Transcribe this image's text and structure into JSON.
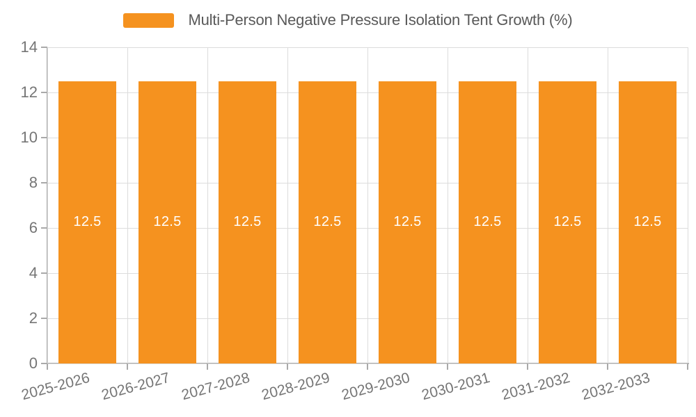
{
  "chart_data": {
    "type": "bar",
    "title": "Multi-Person Negative Pressure Isolation Tent Growth (%)",
    "categories": [
      "2025-2026",
      "2026-2027",
      "2027-2028",
      "2028-2029",
      "2029-2030",
      "2030-2031",
      "2031-2032",
      "2032-2033"
    ],
    "values": [
      12.5,
      12.5,
      12.5,
      12.5,
      12.5,
      12.5,
      12.5,
      12.5
    ],
    "bar_labels": [
      "12.5",
      "12.5",
      "12.5",
      "12.5",
      "12.5",
      "12.5",
      "12.5",
      "12.5"
    ],
    "xlabel": "",
    "ylabel": "",
    "ylim": [
      0,
      14
    ],
    "yticks": [
      0,
      2,
      4,
      6,
      8,
      10,
      12,
      14
    ],
    "ytick_labels": [
      "0",
      "2",
      "4",
      "6",
      "8",
      "10",
      "12",
      "14"
    ],
    "grid": true,
    "legend_position": "top-center",
    "x_label_rotation_deg": -15,
    "colors": {
      "bar": "#F5921F",
      "bar_label": "#FFFFFF",
      "grid": "#DCDCDC",
      "axis": "#A9A9A9",
      "tick_label": "#757575",
      "legend_text": "#595959",
      "background": "#FFFFFF"
    }
  }
}
